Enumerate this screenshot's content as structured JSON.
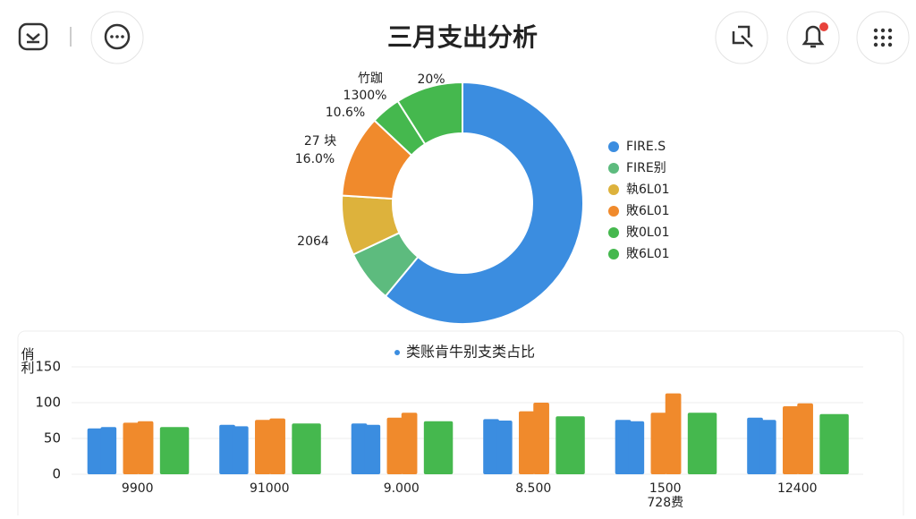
{
  "header": {
    "title": "三月支出分析"
  },
  "chart_data": [
    {
      "type": "pie",
      "categories": [
        "FIRE.S",
        "FIRE别",
        "執6L01",
        "敗6L01",
        "敗0L01",
        "敗6L01"
      ],
      "colors": [
        "#3b8de0",
        "#5dbb7e",
        "#ddb23c",
        "#f08a2c",
        "#45b84e",
        "#45b84e"
      ],
      "values": [
        61,
        7,
        8,
        11,
        4,
        9
      ],
      "annotations": [
        "竹跏",
        "1300%",
        "10.6%",
        "27 块",
        "16.0%",
        "2064",
        "20%"
      ],
      "legend": "right"
    },
    {
      "type": "bar",
      "title": "类账肯牛别支类占比",
      "y_label": "俏利",
      "categories": [
        "9900",
        "91000",
        "9.000",
        "8.500",
        "1500",
        "12400"
      ],
      "annotations": [
        "728费"
      ],
      "series": [
        {
          "color": "#3b8de0",
          "values": [
            64,
            69,
            71,
            77,
            76,
            79
          ]
        },
        {
          "color": "#3b8de0",
          "values": [
            66,
            67,
            69,
            75,
            74,
            76
          ]
        },
        {
          "color": "#f08a2c",
          "values": [
            72,
            76,
            79,
            88,
            86,
            95
          ]
        },
        {
          "color": "#f08a2c",
          "values": [
            74,
            78,
            86,
            100,
            113,
            99
          ]
        },
        {
          "color": "#45b84e",
          "values": [
            66,
            71,
            74,
            81,
            86,
            84
          ]
        }
      ],
      "ylim": [
        0,
        150
      ],
      "yticks": [
        0,
        50,
        100,
        150
      ],
      "grid": true
    }
  ]
}
